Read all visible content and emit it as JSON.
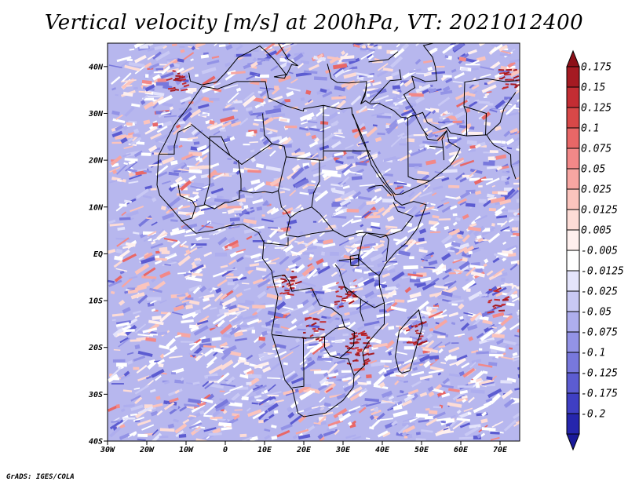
{
  "title": "Vertical velocity [m/s] at 200hPa, VT: 2021012400",
  "credit": "GrADS: IGES/COLA",
  "map": {
    "lon_range": [
      -30,
      75
    ],
    "lat_range": [
      -40,
      45
    ],
    "lon_ticks": [
      {
        "value": -30,
        "label": "30W"
      },
      {
        "value": -20,
        "label": "20W"
      },
      {
        "value": -10,
        "label": "10W"
      },
      {
        "value": 0,
        "label": "0"
      },
      {
        "value": 10,
        "label": "10E"
      },
      {
        "value": 20,
        "label": "20E"
      },
      {
        "value": 30,
        "label": "30E"
      },
      {
        "value": 40,
        "label": "40E"
      },
      {
        "value": 50,
        "label": "50E"
      },
      {
        "value": 60,
        "label": "60E"
      },
      {
        "value": 70,
        "label": "70E"
      }
    ],
    "lat_ticks": [
      {
        "value": 40,
        "label": "40N"
      },
      {
        "value": 30,
        "label": "30N"
      },
      {
        "value": 20,
        "label": "20N"
      },
      {
        "value": 10,
        "label": "10N"
      },
      {
        "value": 0,
        "label": "EQ"
      },
      {
        "value": -10,
        "label": "10S"
      },
      {
        "value": -20,
        "label": "20S"
      },
      {
        "value": -30,
        "label": "30S"
      },
      {
        "value": -40,
        "label": "40S"
      }
    ]
  },
  "colorbar": {
    "entries": [
      {
        "label": "0.175",
        "color": "#a51a22"
      },
      {
        "label": "0.15",
        "color": "#c32d33"
      },
      {
        "label": "0.125",
        "color": "#d84848"
      },
      {
        "label": "0.1",
        "color": "#e86767"
      },
      {
        "label": "0.075",
        "color": "#f28888"
      },
      {
        "label": "0.05",
        "color": "#f7a6a2"
      },
      {
        "label": "0.025",
        "color": "#fbc4bd"
      },
      {
        "label": "0.0125",
        "color": "#fddcd6"
      },
      {
        "label": "0.005",
        "color": "#fff0ee"
      },
      {
        "label": "-0.005",
        "color": "#ffffff"
      },
      {
        "label": "-0.0125",
        "color": "#e4e4fb"
      },
      {
        "label": "-0.025",
        "color": "#c9c9f4"
      },
      {
        "label": "-0.05",
        "color": "#aeaeee"
      },
      {
        "label": "-0.075",
        "color": "#9393e6"
      },
      {
        "label": "-0.1",
        "color": "#7878dc"
      },
      {
        "label": "-0.125",
        "color": "#5c5cd1"
      },
      {
        "label": "-0.175",
        "color": "#3f3fc3"
      },
      {
        "label": "-0.2",
        "color": "#2626ad"
      }
    ],
    "top_arrow_color": "#8c1018",
    "bottom_arrow_color": "#1a1a9a"
  }
}
